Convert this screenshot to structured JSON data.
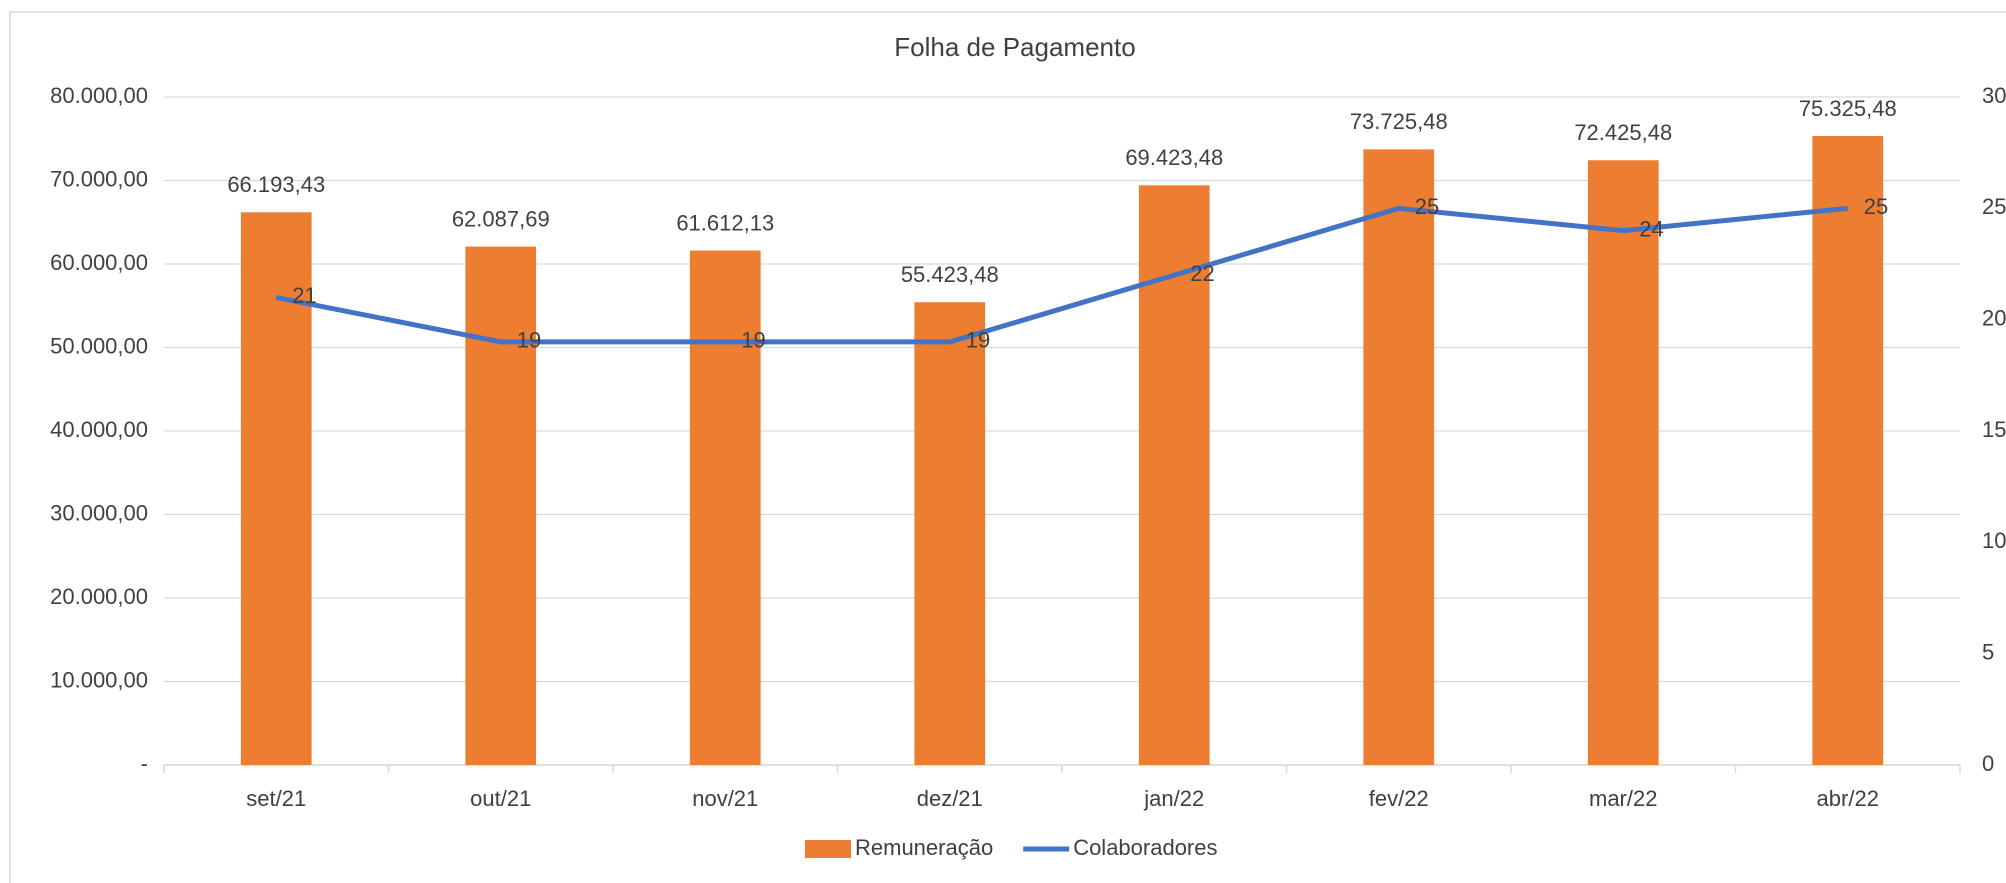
{
  "chart_data": {
    "type": "combo",
    "title": "Folha de Pagamento",
    "categories": [
      "set/21",
      "out/21",
      "nov/21",
      "dez/21",
      "jan/22",
      "fev/22",
      "mar/22",
      "abr/22"
    ],
    "series": [
      {
        "name": "Remuneração",
        "type": "bar",
        "color": "#ed7d31",
        "values": [
          66193.43,
          62087.69,
          61612.13,
          55423.48,
          69423.48,
          73725.48,
          72425.48,
          75325.48
        ],
        "value_labels": [
          "66.193,43",
          "62.087,69",
          "61.612,13",
          "55.423,48",
          "69.423,48",
          "73.725,48",
          "72.425,48",
          "75.325,48"
        ]
      },
      {
        "name": "Colaboradores",
        "type": "line",
        "axis": "y2",
        "color": "#4472c4",
        "values": [
          21,
          19,
          19,
          19,
          22,
          25,
          24,
          25
        ]
      }
    ],
    "ylim": [
      0,
      80000
    ],
    "yticks": [
      {
        "value": 0,
        "label": "-"
      },
      {
        "value": 10000,
        "label": "10.000,00"
      },
      {
        "value": 20000,
        "label": "20.000,00"
      },
      {
        "value": 30000,
        "label": "30.000,00"
      },
      {
        "value": 40000,
        "label": "40.000,00"
      },
      {
        "value": 50000,
        "label": "50.000,00"
      },
      {
        "value": 60000,
        "label": "60.000,00"
      },
      {
        "value": 70000,
        "label": "70.000,00"
      },
      {
        "value": 80000,
        "label": "80.000,00"
      }
    ],
    "y2lim": [
      0,
      30
    ],
    "y2ticks": [
      0,
      5,
      10,
      15,
      20,
      25,
      30
    ],
    "grid": true,
    "legend": "bottom"
  }
}
